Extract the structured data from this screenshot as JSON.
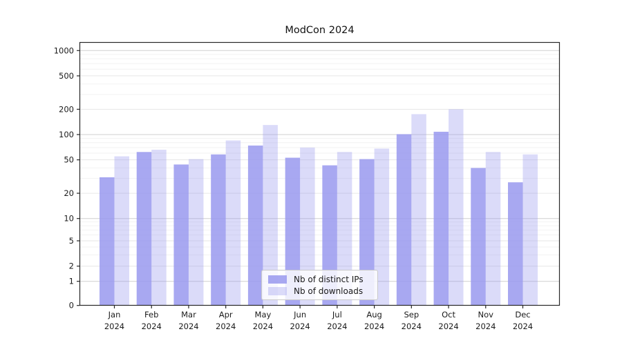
{
  "chart_data": {
    "type": "bar",
    "title": "ModCon 2024",
    "xlabel": "",
    "ylabel": "",
    "yscale": "symlog",
    "grid": true,
    "legend_position": "lower center",
    "y_ticks": [
      0,
      1,
      2,
      5,
      10,
      20,
      50,
      100,
      200,
      500,
      1000
    ],
    "ylim": [
      0,
      1260
    ],
    "year_label": "2024",
    "months": [
      "Jan",
      "Feb",
      "Mar",
      "Apr",
      "May",
      "Jun",
      "Jul",
      "Aug",
      "Sep",
      "Oct",
      "Nov",
      "Dec"
    ],
    "categories": [
      "Jan 2024",
      "Feb 2024",
      "Mar 2024",
      "Apr 2024",
      "May 2024",
      "Jun 2024",
      "Jul 2024",
      "Aug 2024",
      "Sep 2024",
      "Oct 2024",
      "Nov 2024",
      "Dec 2024"
    ],
    "series": [
      {
        "name": "Nb of distinct IPs",
        "color": "#9999ee",
        "alpha": 0.85,
        "values": [
          31,
          62,
          44,
          58,
          74,
          53,
          43,
          51,
          101,
          108,
          40,
          27
        ]
      },
      {
        "name": "Nb of downloads",
        "color": "#9999ee",
        "alpha": 0.35,
        "values": [
          55,
          66,
          51,
          85,
          130,
          70,
          62,
          68,
          175,
          200,
          62,
          58
        ]
      }
    ],
    "colors": {
      "grid_major": "#cfcfcf",
      "grid_minor_labeled": "#e6e6e6",
      "grid_minor": "#f2f2f2",
      "axis": "#262626",
      "text": "#1a1a1a"
    }
  }
}
